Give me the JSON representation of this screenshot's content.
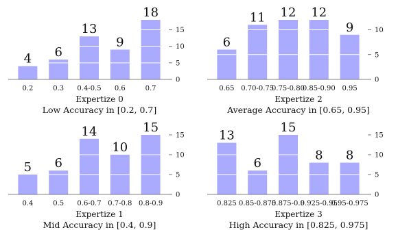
{
  "chart_data": [
    {
      "type": "bar",
      "caption": "Expertize 0",
      "subtitle": "Low Accuracy in [0.2, 0.7]",
      "categories": [
        "0.2",
        "0.3",
        "0.4-0.5",
        "0.6",
        "0.7"
      ],
      "values": [
        4,
        6,
        13,
        9,
        18
      ],
      "yticks": [
        0,
        5,
        10,
        15
      ],
      "ylim": [
        0,
        18
      ],
      "color": "#aaaaff",
      "grid": false
    },
    {
      "type": "bar",
      "caption": "Expertize 2",
      "subtitle": "Average Accuracy in [0.65, 0.95]",
      "categories": [
        "0.65",
        "0.70-0.75",
        "0.75-0.80",
        "0.85-0.90",
        "0.95"
      ],
      "values": [
        6,
        11,
        12,
        12,
        9
      ],
      "yticks": [
        0,
        5,
        10
      ],
      "ylim": [
        0,
        12
      ],
      "color": "#aaaaff",
      "grid": false
    },
    {
      "type": "bar",
      "caption": "Expertize 1",
      "subtitle": "Mid Accuracy in [0.4, 0.9]",
      "categories": [
        "0.4",
        "0.5",
        "0.6-0.7",
        "0.7-0.8",
        "0.8-0.9"
      ],
      "values": [
        5,
        6,
        14,
        10,
        15
      ],
      "yticks": [
        0,
        5,
        10,
        15
      ],
      "ylim": [
        0,
        15
      ],
      "color": "#aaaaff",
      "grid": false
    },
    {
      "type": "bar",
      "caption": "Expertize 3",
      "subtitle": "High Accuracy in [0.825, 0.975]",
      "categories": [
        "0.825",
        "0.85-0.875",
        "0.875-0.9",
        "0.925-0.95",
        "0.95-0.975"
      ],
      "values": [
        13,
        6,
        15,
        8,
        8
      ],
      "yticks": [
        0,
        5,
        10,
        15
      ],
      "ylim": [
        0,
        15
      ],
      "color": "#aaaaff",
      "grid": false
    }
  ]
}
